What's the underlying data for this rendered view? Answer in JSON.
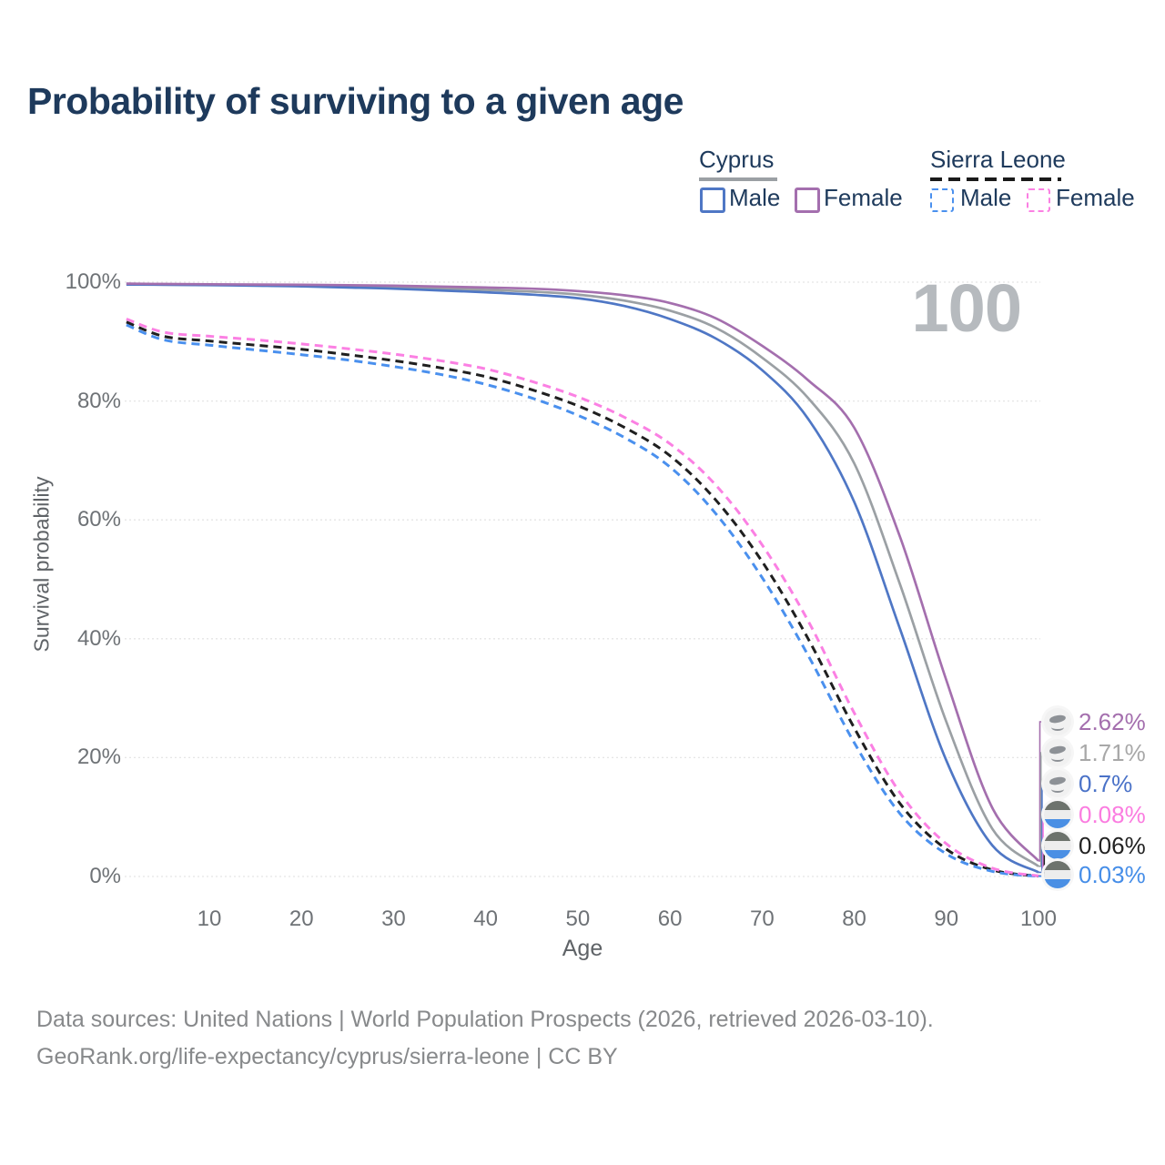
{
  "title": "Probability of surviving to a given age",
  "age_indicator": "100",
  "legend": {
    "groups": [
      {
        "country": "Cyprus",
        "line_style": "solid",
        "line_color": "#9ba0a4",
        "items": [
          {
            "label": "Male",
            "color": "#4f77c5",
            "dashed": false
          },
          {
            "label": "Female",
            "color": "#a46fae",
            "dashed": false
          }
        ]
      },
      {
        "country": "Sierra Leone",
        "line_style": "dashed",
        "line_color": "#1a1a1a",
        "items": [
          {
            "label": "Male",
            "color": "#4a90ee",
            "dashed": true
          },
          {
            "label": "Female",
            "color": "#fb80e3",
            "dashed": true
          }
        ]
      }
    ]
  },
  "chart_data": {
    "type": "line",
    "title": "Probability of surviving to a given age",
    "xlabel": "Age",
    "ylabel": "Survival probability",
    "xlim": [
      1,
      100
    ],
    "ylim": [
      0,
      100
    ],
    "grid": true,
    "legend_position": "top-right",
    "x_ticks": [
      {
        "v": 10,
        "label": "10"
      },
      {
        "v": 20,
        "label": "20"
      },
      {
        "v": 30,
        "label": "30"
      },
      {
        "v": 40,
        "label": "40"
      },
      {
        "v": 50,
        "label": "50"
      },
      {
        "v": 60,
        "label": "60"
      },
      {
        "v": 70,
        "label": "70"
      },
      {
        "v": 80,
        "label": "80"
      },
      {
        "v": 90,
        "label": "90"
      },
      {
        "v": 100,
        "label": "100"
      }
    ],
    "y_ticks": [
      {
        "v": 0,
        "label": "0%"
      },
      {
        "v": 20,
        "label": "20%"
      },
      {
        "v": 40,
        "label": "40%"
      },
      {
        "v": 60,
        "label": "60%"
      },
      {
        "v": 80,
        "label": "80%"
      },
      {
        "v": 100,
        "label": "100%"
      }
    ],
    "ages": [
      1,
      5,
      10,
      15,
      20,
      25,
      30,
      35,
      40,
      45,
      50,
      55,
      60,
      65,
      70,
      75,
      80,
      85,
      90,
      95,
      100
    ],
    "series": [
      {
        "name": "Cyprus Female",
        "color": "#a46fae",
        "label_color": "#a46fae",
        "dashed": false,
        "flag": "cyprus",
        "end_label": "2.62%",
        "values": [
          99.75,
          99.7,
          99.65,
          99.6,
          99.55,
          99.5,
          99.4,
          99.25,
          99.1,
          98.9,
          98.5,
          97.8,
          96.5,
          93.9,
          89.3,
          83.5,
          75.5,
          57,
          33,
          11.5,
          2.62
        ]
      },
      {
        "name": "Cyprus",
        "color": "#9ba0a4",
        "label_color": "#a8a8a8",
        "dashed": false,
        "flag": "cyprus",
        "end_label": "1.71%",
        "values": [
          99.65,
          99.6,
          99.55,
          99.5,
          99.4,
          99.25,
          99.1,
          98.9,
          98.7,
          98.4,
          97.9,
          96.9,
          95.2,
          92.3,
          87.3,
          80.5,
          69.5,
          49,
          26,
          8,
          1.71
        ]
      },
      {
        "name": "Cyprus Male",
        "color": "#4f77c5",
        "label_color": "#4a72c8",
        "dashed": false,
        "flag": "cyprus",
        "end_label": "0.7%",
        "values": [
          99.6,
          99.55,
          99.5,
          99.4,
          99.3,
          99.1,
          98.9,
          98.6,
          98.3,
          97.9,
          97.3,
          96.0,
          93.8,
          90.5,
          85.2,
          77,
          63,
          41.5,
          19.5,
          5.2,
          0.7
        ]
      },
      {
        "name": "Sierra Leone Female",
        "color": "#fb80e3",
        "label_color": "#fb7ce0",
        "dashed": true,
        "flag": "sierra_leone",
        "end_label": "0.08%",
        "values": [
          93.8,
          91.6,
          90.9,
          90.3,
          89.6,
          88.8,
          87.9,
          86.8,
          85.4,
          83.3,
          80.7,
          77.3,
          72.8,
          65.8,
          55.8,
          43,
          27.5,
          14,
          5.5,
          1.4,
          0.08
        ]
      },
      {
        "name": "Sierra Leone",
        "color": "#1f1f1f",
        "label_color": "#222222",
        "dashed": true,
        "flag": "sierra_leone",
        "end_label": "0.06%",
        "values": [
          93.3,
          90.9,
          90.1,
          89.4,
          88.7,
          87.8,
          86.8,
          85.6,
          84.1,
          81.9,
          79.2,
          75.6,
          70.8,
          63.3,
          53,
          40,
          25,
          12.2,
          4.6,
          1.1,
          0.06
        ]
      },
      {
        "name": "Sierra Leone Male",
        "color": "#4a90ee",
        "label_color": "#468ee8",
        "dashed": true,
        "flag": "sierra_leone",
        "end_label": "0.03%",
        "values": [
          92.8,
          90.3,
          89.4,
          88.6,
          87.8,
          86.9,
          85.8,
          84.5,
          82.8,
          80.5,
          77.6,
          73.9,
          68.9,
          61,
          50.3,
          37.2,
          22.5,
          10.5,
          3.8,
          0.85,
          0.03
        ]
      }
    ]
  },
  "footer": {
    "line1": "Data sources: United Nations | World Population Prospects (2026, retrieved 2026-03-10).",
    "line2": "GeoRank.org/life-expectancy/cyprus/sierra-leone | CC BY"
  }
}
